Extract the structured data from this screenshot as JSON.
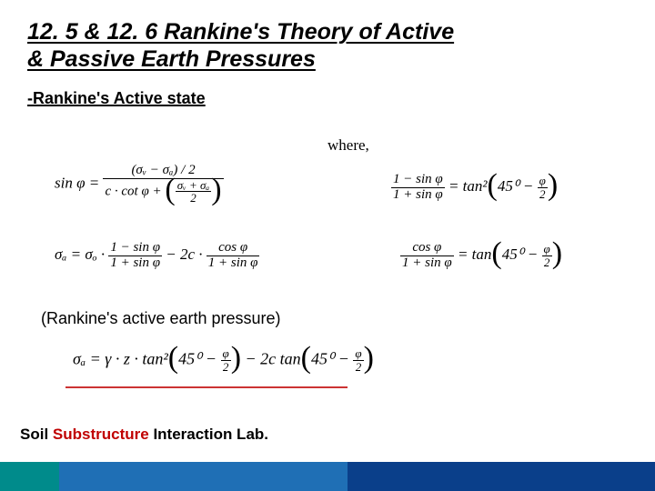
{
  "title": {
    "line1": "12. 5 & 12. 6 Rankine's Theory of Active",
    "line2": "& Passive Earth Pressures"
  },
  "subhead": "-Rankine's Active state",
  "where_label": "where,",
  "equations": {
    "left1": {
      "lhs": "sin φ =",
      "num_top": "(σᵥ − σₐ) / 2",
      "den_left": "c · cot φ + ",
      "den_frac_num": "σᵥ + σₐ",
      "den_frac_den": "2"
    },
    "left2": {
      "lhs": "σₐ = σₒ ·",
      "f1_num": "1 − sin φ",
      "f1_den": "1 + sin φ",
      "mid": "− 2c ·",
      "f2_num": "cos φ",
      "f2_den": "1 + sin φ"
    },
    "right1": {
      "f_num": "1 − sin φ",
      "f_den": "1 + sin φ",
      "eq": "= tan²",
      "ang1": "45⁰ −",
      "ang_frac_num": "φ",
      "ang_frac_den": "2"
    },
    "right2": {
      "f_num": "cos φ",
      "f_den": "1 + sin φ",
      "eq": "= tan",
      "ang1": "45⁰ −",
      "ang_frac_num": "φ",
      "ang_frac_den": "2"
    },
    "bottom": {
      "lhs": "σₐ = γ · z · tan²",
      "ang1": "45⁰ −",
      "ang_frac_num": "φ",
      "ang_frac_den": "2",
      "mid": "− 2c tan",
      "ang2": "45⁰ −"
    }
  },
  "caption": "(Rankine's active earth pressure)",
  "footer": {
    "t1": "Soil ",
    "t2": "Substructure ",
    "t3": "Interaction Lab.",
    "color1": "#000000",
    "color2": "#c00000",
    "color3": "#000000"
  },
  "underline_color": "#cc3333",
  "bar": {
    "c1": "#008b8b",
    "c2": "#1f6fb5",
    "c3": "#0a3f8a"
  }
}
